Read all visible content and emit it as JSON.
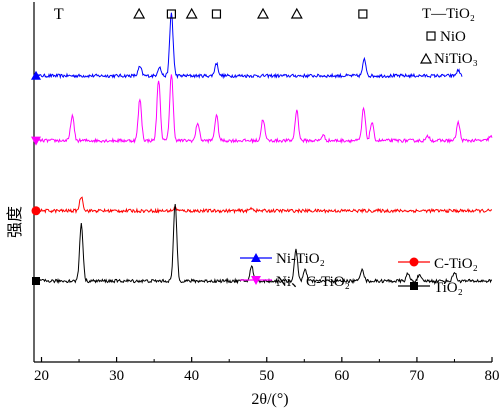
{
  "chart_data": {
    "type": "line",
    "xlabel": "2θ/(°)",
    "ylabel": "强度",
    "xlim": [
      19,
      80
    ],
    "xticks": [
      "20",
      "30",
      "40",
      "50",
      "60",
      "70",
      "80"
    ],
    "phase_legend": {
      "T_label": "T—TiO₂",
      "nio_label": "NiO",
      "nitio3_label": "NiTiO₃"
    },
    "phase_markers": [
      {
        "symbol": "T",
        "x": 22.3
      },
      {
        "symbol": "triangle",
        "x": 33.0
      },
      {
        "symbol": "square",
        "x": 37.3
      },
      {
        "symbol": "triangle",
        "x": 40.0
      },
      {
        "symbol": "square",
        "x": 43.3
      },
      {
        "symbol": "triangle",
        "x": 49.5
      },
      {
        "symbol": "triangle",
        "x": 54.0
      },
      {
        "symbol": "square",
        "x": 62.8
      }
    ],
    "series": [
      {
        "name": "Ni-TiO₂",
        "color": "#0000ff",
        "marker": "triangle",
        "x_range": [
          19,
          76
        ],
        "baseline": 0.795,
        "peaks": [
          [
            33.1,
            0.025
          ],
          [
            35.7,
            0.025
          ],
          [
            37.3,
            0.175
          ],
          [
            43.3,
            0.035
          ],
          [
            63.0,
            0.045
          ],
          [
            75.5,
            0.015
          ]
        ]
      },
      {
        "name": "Ni、C-TiO₂",
        "color": "#ff00ff",
        "marker": "inverted-triangle",
        "x_range": [
          19,
          80
        ],
        "baseline": 0.615,
        "peaks": [
          [
            24.1,
            0.07
          ],
          [
            33.1,
            0.115
          ],
          [
            35.6,
            0.17
          ],
          [
            37.3,
            0.185
          ],
          [
            40.8,
            0.05
          ],
          [
            43.3,
            0.07
          ],
          [
            49.5,
            0.06
          ],
          [
            54.0,
            0.085
          ],
          [
            57.5,
            0.015
          ],
          [
            62.9,
            0.09
          ],
          [
            64.0,
            0.05
          ],
          [
            71.5,
            0.012
          ],
          [
            75.5,
            0.05
          ],
          [
            79.8,
            0.012
          ]
        ]
      },
      {
        "name": "C-TiO₂",
        "color": "#ff0000",
        "marker": "circle",
        "x_range": [
          19,
          80
        ],
        "baseline": 0.42,
        "peaks": [
          [
            25.3,
            0.04
          ],
          [
            48.0,
            0.008
          ],
          [
            37.8,
            0.008
          ]
        ]
      },
      {
        "name": "TiO₂",
        "color": "#000000",
        "marker": "square",
        "x_range": [
          19,
          80
        ],
        "baseline": 0.225,
        "peaks": [
          [
            25.3,
            0.16
          ],
          [
            37.8,
            0.215
          ],
          [
            48.0,
            0.04
          ],
          [
            53.9,
            0.085
          ],
          [
            55.1,
            0.03
          ],
          [
            62.7,
            0.035
          ],
          [
            68.8,
            0.02
          ],
          [
            70.3,
            0.015
          ],
          [
            75.0,
            0.025
          ]
        ]
      }
    ]
  }
}
